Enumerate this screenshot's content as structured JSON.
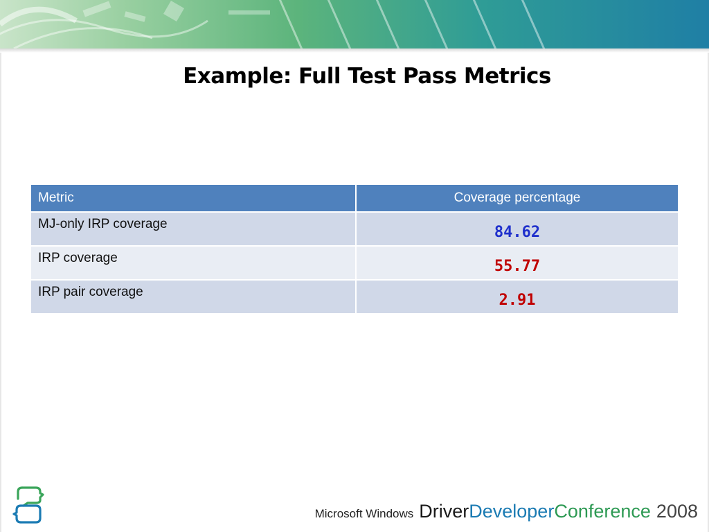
{
  "slide": {
    "title": "Example: Full Test Pass Metrics"
  },
  "table": {
    "headers": [
      "Metric",
      "Coverage percentage"
    ],
    "rows": [
      {
        "metric": "MJ-only IRP coverage",
        "value": "84.62",
        "value_color": "#1e2fcc"
      },
      {
        "metric": "IRP coverage",
        "value": "55.77",
        "value_color": "#c00000"
      },
      {
        "metric": "IRP pair coverage",
        "value": "2.91",
        "value_color": "#c00000"
      }
    ],
    "header_color": "#4f81bd"
  },
  "footer": {
    "brand_small": "Microsoft Windows",
    "word1": "Driver",
    "word2": "Developer",
    "word3": "Conference",
    "year": "2008"
  },
  "icons": {
    "logo": "conference-heads-logo-icon"
  }
}
